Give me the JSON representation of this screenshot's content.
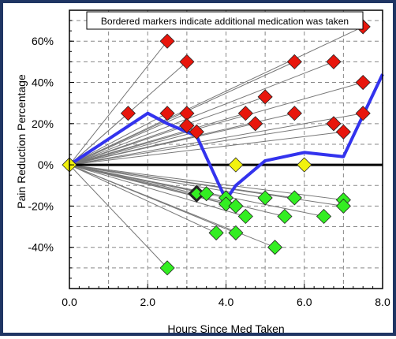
{
  "chart_data": {
    "type": "scatter",
    "xlabel": "Hours Since Med Taken",
    "ylabel": "Pain Reduction Percentage",
    "xlim": [
      0,
      8
    ],
    "ylim": [
      -60,
      75
    ],
    "x_ticks": [
      0,
      2,
      4,
      6,
      8
    ],
    "x_tick_labels": [
      "0.0",
      "2.0",
      "4.0",
      "6.0",
      "8.0"
    ],
    "y_ticks": [
      60,
      40,
      20,
      0,
      -20,
      -40
    ],
    "y_tick_labels": [
      "60%",
      "40%",
      "20%",
      "0%",
      "-20%",
      "-40%"
    ],
    "annotation": "Bordered markers indicate additional medication was taken",
    "grid": "dashed",
    "colors": {
      "positive": "#e8160c",
      "negative": "#33ee22",
      "neutral": "#f2f20d",
      "average_line": "#3333ee",
      "connector": "#777777",
      "frame": "#1f3563"
    },
    "series": [
      {
        "type": "line",
        "values": [
          {
            "x": 0,
            "y": 0
          },
          {
            "x": 2.0,
            "y": 25
          },
          {
            "x": 2.5,
            "y": 20
          },
          {
            "x": 3.25,
            "y": 14
          },
          {
            "x": 4.0,
            "y": -17
          },
          {
            "x": 4.25,
            "y": -10
          },
          {
            "x": 5.0,
            "y": 2
          },
          {
            "x": 6.0,
            "y": 6
          },
          {
            "x": 7.0,
            "y": 4
          },
          {
            "x": 8.0,
            "y": 44
          }
        ]
      },
      {
        "type": "scatter",
        "values": [
          {
            "x": 0,
            "y": 0,
            "cls": "neutral",
            "bordered": false
          },
          {
            "x": 1.5,
            "y": 25,
            "cls": "positive",
            "bordered": false
          },
          {
            "x": 2.5,
            "y": 60,
            "cls": "positive",
            "bordered": false
          },
          {
            "x": 2.5,
            "y": 25,
            "cls": "positive",
            "bordered": false
          },
          {
            "x": 3.0,
            "y": 50,
            "cls": "positive",
            "bordered": false
          },
          {
            "x": 3.0,
            "y": 25,
            "cls": "positive",
            "bordered": false
          },
          {
            "x": 3.0,
            "y": 19,
            "cls": "positive",
            "bordered": false
          },
          {
            "x": 3.25,
            "y": 16,
            "cls": "positive",
            "bordered": false
          },
          {
            "x": 4.5,
            "y": 25,
            "cls": "positive",
            "bordered": false
          },
          {
            "x": 4.75,
            "y": 20,
            "cls": "positive",
            "bordered": false
          },
          {
            "x": 5.0,
            "y": 33,
            "cls": "positive",
            "bordered": false
          },
          {
            "x": 5.75,
            "y": 50,
            "cls": "positive",
            "bordered": false
          },
          {
            "x": 5.75,
            "y": 25,
            "cls": "positive",
            "bordered": false
          },
          {
            "x": 6.75,
            "y": 50,
            "cls": "positive",
            "bordered": false
          },
          {
            "x": 6.75,
            "y": 20,
            "cls": "positive",
            "bordered": false
          },
          {
            "x": 7.0,
            "y": 16,
            "cls": "positive",
            "bordered": false
          },
          {
            "x": 7.5,
            "y": 67,
            "cls": "positive",
            "bordered": false
          },
          {
            "x": 7.5,
            "y": 40,
            "cls": "positive",
            "bordered": false
          },
          {
            "x": 7.5,
            "y": 25,
            "cls": "positive",
            "bordered": false
          },
          {
            "x": 4.25,
            "y": 0,
            "cls": "neutral",
            "bordered": false
          },
          {
            "x": 6.0,
            "y": 0,
            "cls": "neutral",
            "bordered": false
          },
          {
            "x": 3.25,
            "y": -14,
            "cls": "negative",
            "bordered": true
          },
          {
            "x": 3.5,
            "y": -14,
            "cls": "negative",
            "bordered": false
          },
          {
            "x": 4.0,
            "y": -16,
            "cls": "negative",
            "bordered": false
          },
          {
            "x": 4.0,
            "y": -19,
            "cls": "negative",
            "bordered": false
          },
          {
            "x": 4.25,
            "y": -20,
            "cls": "negative",
            "bordered": false
          },
          {
            "x": 4.5,
            "y": -25,
            "cls": "negative",
            "bordered": false
          },
          {
            "x": 5.0,
            "y": -16,
            "cls": "negative",
            "bordered": false
          },
          {
            "x": 5.75,
            "y": -16,
            "cls": "negative",
            "bordered": false
          },
          {
            "x": 5.5,
            "y": -25,
            "cls": "negative",
            "bordered": false
          },
          {
            "x": 6.5,
            "y": -25,
            "cls": "negative",
            "bordered": false
          },
          {
            "x": 7.0,
            "y": -17,
            "cls": "negative",
            "bordered": false
          },
          {
            "x": 7.0,
            "y": -20,
            "cls": "negative",
            "bordered": false
          },
          {
            "x": 3.75,
            "y": -33,
            "cls": "negative",
            "bordered": false
          },
          {
            "x": 4.25,
            "y": -33,
            "cls": "negative",
            "bordered": false
          },
          {
            "x": 5.25,
            "y": -40,
            "cls": "negative",
            "bordered": false
          },
          {
            "x": 2.5,
            "y": -50,
            "cls": "negative",
            "bordered": false
          }
        ]
      }
    ]
  }
}
